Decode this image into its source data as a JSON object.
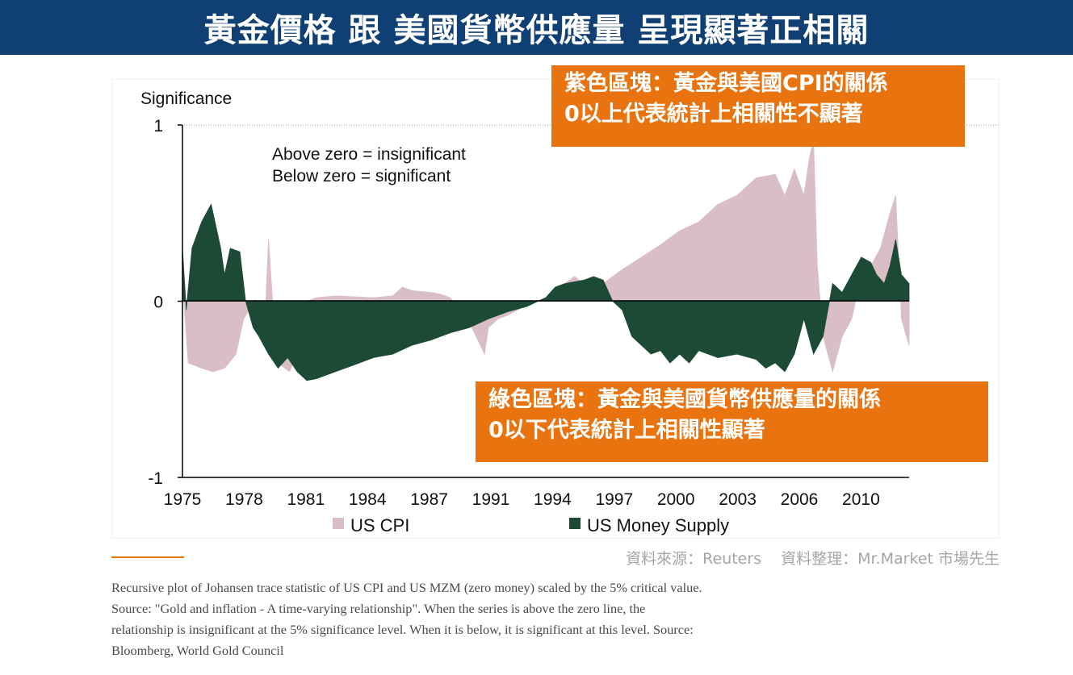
{
  "header": {
    "title": "黃金價格 跟 美國貨幣供應量 呈現顯著正相關"
  },
  "callouts": {
    "top": {
      "line1": "紫色區塊：黃金與美國CPI的關係",
      "line2": "0以上代表統計上相關性不顯著"
    },
    "bottom": {
      "line1": "綠色區塊：黃金與美國貨幣供應量的關係",
      "line2": "0以下代表統計上相關性顯著"
    }
  },
  "credits": {
    "source": "資料來源：Reuters",
    "compiled": "資料整理：Mr.Market 市場先生"
  },
  "caption": {
    "lines": [
      "Recursive plot of Johansen trace statistic of US CPI and US MZM (zero money) scaled by the 5% critical value.",
      "Source: \"Gold and inflation - A time-varying relationship\". When the series is above the zero line, the",
      "relationship is insignificant at the 5% significance level. When it is below, it is significant at this level. Source:",
      "Bloomberg, World Gold Council"
    ]
  },
  "colors": {
    "title_bg": "#0f3f73",
    "callout_bg": "#e8730f",
    "cpi": "#d9bfc5",
    "money_supply": "#1d4a37"
  },
  "chart_data": {
    "type": "area",
    "ylabel": "Significance",
    "xlabel": "",
    "xlim": [
      1975,
      2013
    ],
    "ylim": [
      -1,
      1
    ],
    "y_ticks": [
      1,
      0,
      -1
    ],
    "x_tick_labels": [
      "1975",
      "1978",
      "1981",
      "1984",
      "1987",
      "1991",
      "1994",
      "1997",
      "2000",
      "2003",
      "2006",
      "2010"
    ],
    "grid": false,
    "legend_position": "bottom",
    "annotations": [
      "Above zero = insignificant",
      "Below zero = significant"
    ],
    "series": [
      {
        "name": "US CPI",
        "color": "#d9bfc5",
        "x": [
          1975.0,
          1975.3,
          1976.0,
          1976.6,
          1977.2,
          1977.8,
          1978.2,
          1978.8,
          1979.3,
          1979.5,
          1979.7,
          1980.0,
          1980.6,
          1981.0,
          1981.5,
          1982.0,
          1983.0,
          1985.0,
          1986.0,
          1986.5,
          1987.0,
          1988.0,
          1988.5,
          1989.0,
          1990.0,
          1990.8,
          1991.0,
          1991.5,
          1992.0,
          1993.0,
          1994.0,
          1994.5,
          1995.0,
          1995.5,
          1996.0,
          1996.5,
          1997.0,
          1998.0,
          1999.0,
          2000.0,
          2001.0,
          2002.0,
          2003.0,
          2004.0,
          2005.0,
          2006.0,
          2006.5,
          2007.0,
          2007.5,
          2007.8,
          2008.0,
          2008.2,
          2008.5,
          2009.0,
          2009.5,
          2010.0,
          2010.5,
          2011.0,
          2011.5,
          2012.0,
          2012.3,
          2012.6,
          2013.0
        ],
        "values": [
          0.12,
          -0.35,
          -0.38,
          -0.4,
          -0.38,
          -0.3,
          -0.1,
          0.01,
          -0.15,
          0.35,
          0.02,
          -0.35,
          -0.4,
          -0.3,
          0.0,
          0.02,
          0.03,
          0.02,
          0.03,
          0.08,
          0.06,
          0.05,
          0.04,
          0.02,
          -0.12,
          -0.3,
          -0.15,
          -0.1,
          -0.08,
          -0.02,
          0.02,
          0.06,
          0.1,
          0.14,
          0.1,
          0.08,
          0.1,
          0.18,
          0.25,
          0.32,
          0.4,
          0.45,
          0.55,
          0.6,
          0.7,
          0.72,
          0.6,
          0.75,
          0.6,
          0.82,
          0.92,
          0.2,
          -0.2,
          -0.4,
          -0.2,
          -0.1,
          0.15,
          0.2,
          0.3,
          0.5,
          0.6,
          -0.1,
          -0.25
        ]
      },
      {
        "name": "US Money Supply",
        "color": "#1d4a37",
        "x": [
          1975.0,
          1975.2,
          1975.5,
          1976.0,
          1976.5,
          1977.0,
          1977.2,
          1977.5,
          1978.0,
          1978.3,
          1978.7,
          1979.0,
          1979.5,
          1980.0,
          1980.5,
          1981.0,
          1981.5,
          1982.0,
          1983.0,
          1984.0,
          1985.0,
          1986.0,
          1987.0,
          1988.0,
          1989.0,
          1990.0,
          1991.0,
          1992.0,
          1993.0,
          1994.0,
          1994.5,
          1995.0,
          1996.0,
          1996.5,
          1997.0,
          1997.5,
          1998.0,
          1998.5,
          1999.0,
          1999.5,
          2000.0,
          2000.5,
          2001.0,
          2001.5,
          2002.0,
          2002.5,
          2003.0,
          2004.0,
          2005.0,
          2005.5,
          2006.0,
          2006.5,
          2007.0,
          2007.5,
          2008.0,
          2008.5,
          2009.0,
          2009.5,
          2010.0,
          2010.5,
          2011.0,
          2011.3,
          2011.7,
          2012.0,
          2012.3,
          2012.6,
          2013.0
        ],
        "values": [
          0.3,
          -0.05,
          0.3,
          0.45,
          0.55,
          0.3,
          0.15,
          0.3,
          0.28,
          0.0,
          -0.15,
          -0.2,
          -0.3,
          -0.38,
          -0.32,
          -0.4,
          -0.45,
          -0.44,
          -0.4,
          -0.36,
          -0.32,
          -0.3,
          -0.25,
          -0.22,
          -0.18,
          -0.15,
          -0.1,
          -0.06,
          -0.03,
          0.02,
          0.08,
          0.1,
          0.12,
          0.14,
          0.12,
          0.0,
          -0.05,
          -0.2,
          -0.25,
          -0.3,
          -0.28,
          -0.35,
          -0.3,
          -0.35,
          -0.28,
          -0.3,
          -0.32,
          -0.3,
          -0.33,
          -0.38,
          -0.35,
          -0.4,
          -0.3,
          -0.1,
          -0.3,
          -0.2,
          0.1,
          0.05,
          0.15,
          0.25,
          0.22,
          0.15,
          0.1,
          0.2,
          0.35,
          0.15,
          0.1
        ]
      }
    ]
  }
}
